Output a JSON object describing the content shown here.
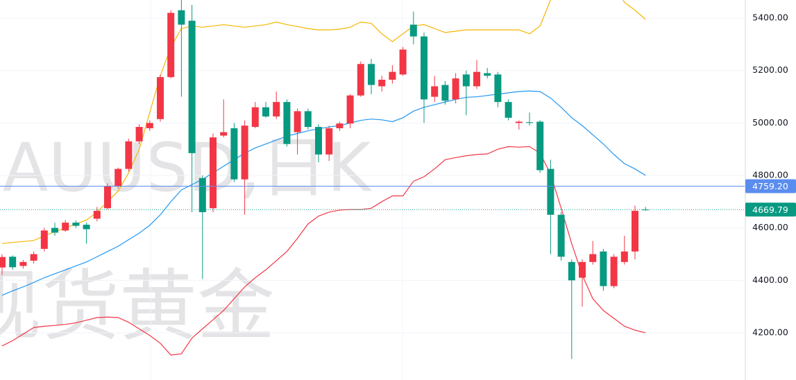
{
  "chart_data": {
    "type": "candlestick",
    "watermark": [
      "XAUUSD,日K",
      "现货黄金"
    ],
    "up_color": "#f23645",
    "down_color": "#089981",
    "open": [
      4449,
      4490,
      4455,
      4475,
      4520,
      4600,
      4590,
      4620,
      4612,
      4635,
      4675,
      4760,
      4825,
      4930,
      4980,
      5015,
      5175,
      5430,
      5390,
      4790,
      4675,
      4952,
      4980,
      4785,
      4985,
      5060,
      5025,
      5080,
      4965,
      5045,
      4985,
      4880,
      4980,
      4998,
      5105,
      5225,
      5140,
      5165,
      5185,
      5375,
      5330,
      5100,
      5145,
      5090,
      5185,
      5140,
      5190,
      5185,
      5080,
      5000,
      5003,
      5005,
      4825,
      4650,
      4470,
      4410,
      4470,
      4510,
      4378,
      4470,
      4510,
      4670
    ],
    "high": [
      4500,
      4495,
      4478,
      4510,
      4600,
      4620,
      4630,
      4628,
      4620,
      4680,
      4770,
      4830,
      4940,
      4995,
      5010,
      5185,
      5430,
      5480,
      5450,
      4800,
      4960,
      5090,
      5000,
      5010,
      5080,
      5080,
      5120,
      5090,
      5055,
      5055,
      4995,
      4990,
      5005,
      5110,
      5235,
      5245,
      5180,
      5220,
      5290,
      5425,
      5345,
      5180,
      5160,
      5190,
      5200,
      5240,
      5210,
      5195,
      5090,
      5010,
      5040,
      5010,
      4860,
      4660,
      4480,
      4480,
      4550,
      4520,
      4500,
      4570,
      4685,
      4680
    ],
    "low": [
      4420,
      4440,
      4445,
      4465,
      4510,
      4570,
      4585,
      4600,
      4540,
      4625,
      4670,
      4750,
      4815,
      4920,
      4970,
      5005,
      5170,
      5100,
      4660,
      4405,
      4660,
      4945,
      4775,
      4650,
      4980,
      5020,
      5015,
      4910,
      4880,
      4975,
      4850,
      4855,
      4970,
      4980,
      5100,
      5110,
      5120,
      5150,
      5180,
      5300,
      5000,
      5080,
      5070,
      5075,
      5030,
      5130,
      5170,
      5060,
      5010,
      4975,
      4990,
      4810,
      4500,
      4475,
      4100,
      4300,
      4460,
      4360,
      4370,
      4460,
      4480,
      4665
    ],
    "close": [
      4489,
      4450,
      4470,
      4500,
      4590,
      4582,
      4620,
      4608,
      4595,
      4665,
      4760,
      4825,
      4930,
      4985,
      5000,
      5175,
      5420,
      5375,
      4885,
      4660,
      4945,
      4965,
      4785,
      4990,
      5060,
      5025,
      5080,
      4920,
      5045,
      4985,
      4880,
      4980,
      4998,
      5105,
      5225,
      5145,
      5165,
      5195,
      5280,
      5330,
      5090,
      5140,
      5085,
      5170,
      5140,
      5195,
      5180,
      5080,
      5020,
      5005,
      5000,
      4820,
      4650,
      4490,
      4400,
      4470,
      4500,
      4378,
      4490,
      4510,
      4665,
      4669.79
    ],
    "bands": [
      {
        "color": "#f7b500",
        "values": [
          4540,
          4545,
          4548,
          4552,
          4570,
          4585,
          4600,
          4615,
          4630,
          4660,
          4700,
          4740,
          4810,
          4900,
          5040,
          5180,
          5290,
          5360,
          5370,
          5365,
          5370,
          5375,
          5370,
          5365,
          5370,
          5375,
          5385,
          5375,
          5368,
          5360,
          5355,
          5355,
          5358,
          5365,
          5385,
          5380,
          5340,
          5310,
          5340,
          5370,
          5375,
          5360,
          5345,
          5350,
          5355,
          5355,
          5355,
          5355,
          5355,
          5355,
          5340,
          5370,
          5470,
          5530,
          5580,
          5610,
          5610,
          5580,
          5530,
          5460,
          5430,
          5395
        ]
      },
      {
        "color": "#2196f3",
        "values": [
          4343,
          4360,
          4375,
          4392,
          4410,
          4425,
          4440,
          4455,
          4470,
          4490,
          4510,
          4530,
          4555,
          4580,
          4610,
          4650,
          4700,
          4745,
          4765,
          4785,
          4810,
          4835,
          4860,
          4885,
          4905,
          4920,
          4935,
          4950,
          4960,
          4970,
          4978,
          4985,
          4990,
          5000,
          5010,
          5015,
          5012,
          5005,
          5020,
          5045,
          5060,
          5070,
          5080,
          5090,
          5098,
          5100,
          5105,
          5110,
          5115,
          5120,
          5122,
          5120,
          5095,
          5060,
          5020,
          4990,
          4955,
          4920,
          4880,
          4845,
          4825,
          4800
        ]
      },
      {
        "color": "#f23645",
        "values": [
          4150,
          4170,
          4195,
          4220,
          4225,
          4228,
          4232,
          4238,
          4248,
          4258,
          4260,
          4258,
          4240,
          4215,
          4190,
          4160,
          4115,
          4120,
          4180,
          4215,
          4250,
          4285,
          4330,
          4375,
          4410,
          4440,
          4475,
          4510,
          4560,
          4615,
          4645,
          4660,
          4668,
          4670,
          4670,
          4675,
          4700,
          4722,
          4722,
          4778,
          4795,
          4825,
          4860,
          4868,
          4875,
          4880,
          4882,
          4900,
          4910,
          4908,
          4910,
          4885,
          4805,
          4675,
          4540,
          4420,
          4330,
          4285,
          4255,
          4225,
          4210,
          4200
        ]
      }
    ],
    "ylim": [
      4020,
      5469
    ],
    "yticks": [
      {
        "value": 4200,
        "label": "4200.00"
      },
      {
        "value": 4400,
        "label": "4400.00"
      },
      {
        "value": 4600,
        "label": "4600.00"
      },
      {
        "value": 4800,
        "label": "4800.00"
      },
      {
        "value": 5000,
        "label": "5000.00"
      },
      {
        "value": 5200,
        "label": "5200.00"
      },
      {
        "value": 5400,
        "label": "5400.00"
      }
    ],
    "grid": true,
    "price_lines": [
      {
        "value": 4759.2,
        "label": "4759.20",
        "color": "#5b8def",
        "style": "solid"
      },
      {
        "value": 4669.79,
        "label": "4669.79",
        "color": "#089981",
        "style": "dotted"
      }
    ]
  }
}
